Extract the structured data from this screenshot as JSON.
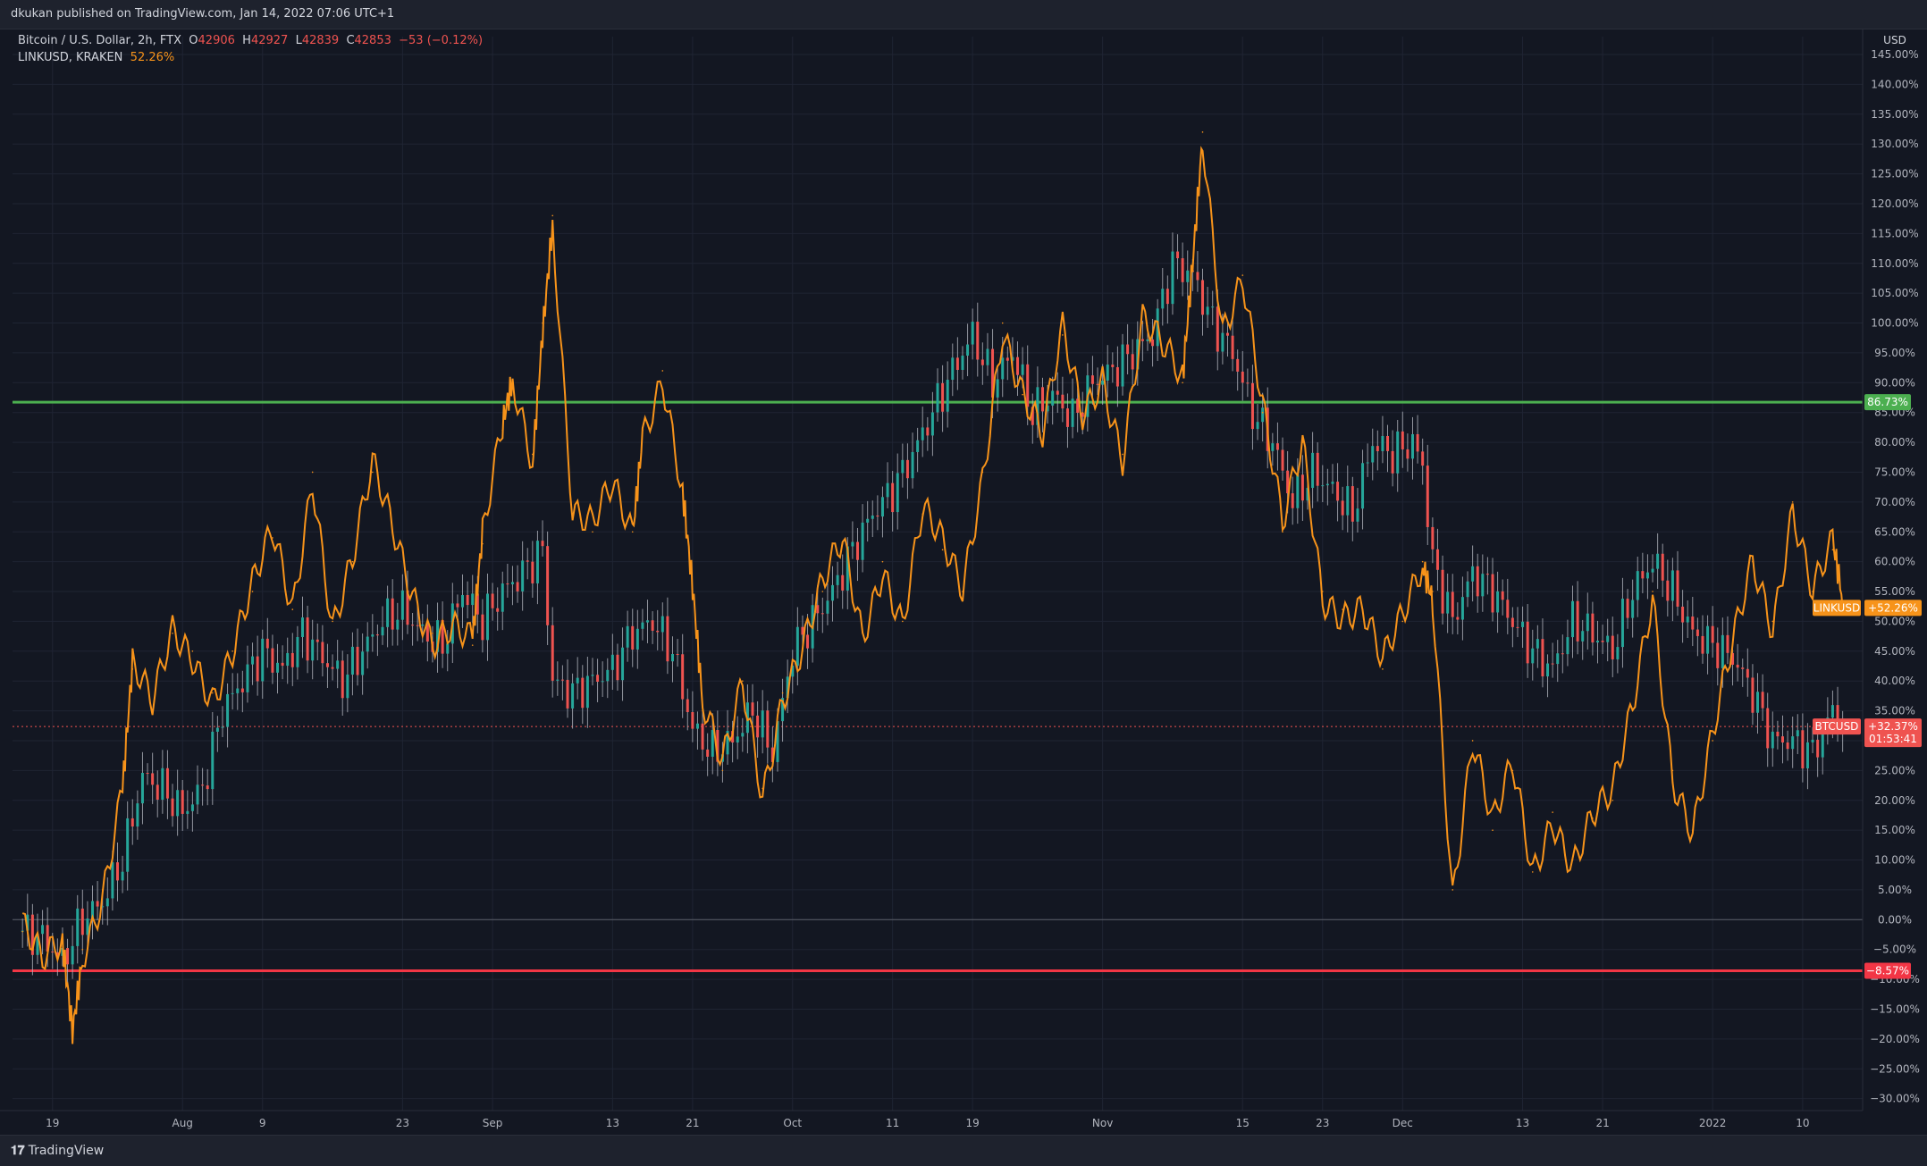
{
  "header": {
    "published": "dkukan published on TradingView.com, Jan 14, 2022 07:06 UTC+1"
  },
  "legend": {
    "main_symbol": "Bitcoin / U.S. Dollar, 2h, FTX",
    "ohlc": {
      "o_label": "O",
      "o": "42906",
      "h_label": "H",
      "h": "42927",
      "l_label": "L",
      "l": "42839",
      "c_label": "C",
      "c": "42853",
      "change": "−53 (−0.12%)"
    },
    "compare_symbol": "LINKUSD, KRAKEN",
    "compare_value": "52.26%"
  },
  "footer": {
    "brand": "TradingView"
  },
  "colors": {
    "background": "#131722",
    "grid": "#1f2433",
    "btc_up": "#26a69a",
    "btc_down": "#ef5350",
    "btc_wick": "#b2b5be",
    "link": "#f7931a",
    "support_line": "#f23645",
    "resistance_line": "#4caf50"
  },
  "chart_data": {
    "type": "line",
    "price_axis_unit": "USD",
    "y_ticks": [
      "145.00%",
      "140.00%",
      "135.00%",
      "130.00%",
      "125.00%",
      "120.00%",
      "115.00%",
      "110.00%",
      "105.00%",
      "100.00%",
      "95.00%",
      "90.00%",
      "85.00%",
      "80.00%",
      "75.00%",
      "70.00%",
      "65.00%",
      "60.00%",
      "55.00%",
      "50.00%",
      "45.00%",
      "40.00%",
      "35.00%",
      "30.00%",
      "25.00%",
      "20.00%",
      "15.00%",
      "10.00%",
      "5.00%",
      "0.00%",
      "−5.00%",
      "−10.00%",
      "−15.00%",
      "−20.00%",
      "−25.00%",
      "−30.00%"
    ],
    "ylim": [
      -32,
      148
    ],
    "x_ticks": [
      {
        "label": "19",
        "date": "2021-07-19"
      },
      {
        "label": "Aug",
        "date": "2021-08-01"
      },
      {
        "label": "9",
        "date": "2021-08-09"
      },
      {
        "label": "23",
        "date": "2021-08-23"
      },
      {
        "label": "Sep",
        "date": "2021-09-01"
      },
      {
        "label": "13",
        "date": "2021-09-13"
      },
      {
        "label": "21",
        "date": "2021-09-21"
      },
      {
        "label": "Oct",
        "date": "2021-10-01"
      },
      {
        "label": "11",
        "date": "2021-10-11"
      },
      {
        "label": "19",
        "date": "2021-10-19"
      },
      {
        "label": "Nov",
        "date": "2021-11-01"
      },
      {
        "label": "15",
        "date": "2021-11-15"
      },
      {
        "label": "23",
        "date": "2021-11-23"
      },
      {
        "label": "Dec",
        "date": "2021-12-01"
      },
      {
        "label": "13",
        "date": "2021-12-13"
      },
      {
        "label": "21",
        "date": "2021-12-21"
      },
      {
        "label": "2022",
        "date": "2022-01-01"
      },
      {
        "label": "10",
        "date": "2022-01-10"
      }
    ],
    "series": [
      {
        "name": "LINKUSD",
        "style": "line",
        "x": [
          "2021-07-16",
          "2021-07-18",
          "2021-07-20",
          "2021-07-21",
          "2021-07-22",
          "2021-07-24",
          "2021-07-26",
          "2021-07-27",
          "2021-07-29",
          "2021-07-31",
          "2021-08-02",
          "2021-08-04",
          "2021-08-06",
          "2021-08-08",
          "2021-08-10",
          "2021-08-12",
          "2021-08-14",
          "2021-08-16",
          "2021-08-18",
          "2021-08-20",
          "2021-08-22",
          "2021-08-24",
          "2021-08-26",
          "2021-08-28",
          "2021-08-30",
          "2021-08-31",
          "2021-09-02",
          "2021-09-03",
          "2021-09-05",
          "2021-09-06",
          "2021-09-07",
          "2021-09-09",
          "2021-09-11",
          "2021-09-13",
          "2021-09-15",
          "2021-09-16",
          "2021-09-18",
          "2021-09-20",
          "2021-09-21",
          "2021-09-22",
          "2021-09-24",
          "2021-09-26",
          "2021-09-28",
          "2021-09-30",
          "2021-10-02",
          "2021-10-04",
          "2021-10-06",
          "2021-10-08",
          "2021-10-10",
          "2021-10-12",
          "2021-10-14",
          "2021-10-16",
          "2021-10-18",
          "2021-10-20",
          "2021-10-22",
          "2021-10-24",
          "2021-10-26",
          "2021-10-28",
          "2021-10-30",
          "2021-11-01",
          "2021-11-03",
          "2021-11-05",
          "2021-11-07",
          "2021-11-09",
          "2021-11-10",
          "2021-11-11",
          "2021-11-13",
          "2021-11-15",
          "2021-11-17",
          "2021-11-19",
          "2021-11-21",
          "2021-11-23",
          "2021-11-25",
          "2021-11-27",
          "2021-11-29",
          "2021-12-01",
          "2021-12-03",
          "2021-12-04",
          "2021-12-06",
          "2021-12-08",
          "2021-12-10",
          "2021-12-12",
          "2021-12-14",
          "2021-12-16",
          "2021-12-18",
          "2021-12-20",
          "2021-12-22",
          "2021-12-24",
          "2021-12-26",
          "2021-12-28",
          "2021-12-30",
          "2022-01-01",
          "2022-01-03",
          "2022-01-05",
          "2022-01-07",
          "2022-01-09",
          "2022-01-11",
          "2022-01-13",
          "2022-01-14"
        ],
        "y": [
          -2,
          -8,
          -4,
          -18,
          -5,
          5,
          22,
          42,
          35,
          48,
          45,
          38,
          45,
          55,
          64,
          52,
          75,
          50,
          60,
          75,
          65,
          55,
          48,
          50,
          46,
          63,
          82,
          90,
          78,
          100,
          118,
          68,
          65,
          72,
          65,
          82,
          92,
          72,
          55,
          35,
          25,
          40,
          22,
          38,
          45,
          55,
          63,
          48,
          60,
          50,
          68,
          62,
          55,
          75,
          100,
          88,
          80,
          98,
          85,
          92,
          78,
          100,
          95,
          90,
          110,
          132,
          100,
          108,
          85,
          65,
          80,
          55,
          52,
          52,
          42,
          50,
          60,
          55,
          5,
          30,
          15,
          25,
          8,
          18,
          10,
          17,
          20,
          35,
          55,
          25,
          15,
          30,
          45,
          60,
          50,
          70,
          55,
          62,
          52
        ]
      },
      {
        "name": "BTCUSD",
        "style": "candles",
        "x": [
          "2021-07-16",
          "2021-07-18",
          "2021-07-20",
          "2021-07-22",
          "2021-07-24",
          "2021-07-26",
          "2021-07-28",
          "2021-07-30",
          "2021-08-01",
          "2021-08-03",
          "2021-08-05",
          "2021-08-07",
          "2021-08-09",
          "2021-08-11",
          "2021-08-13",
          "2021-08-15",
          "2021-08-17",
          "2021-08-19",
          "2021-08-21",
          "2021-08-23",
          "2021-08-25",
          "2021-08-27",
          "2021-08-29",
          "2021-08-31",
          "2021-09-02",
          "2021-09-04",
          "2021-09-06",
          "2021-09-07",
          "2021-09-09",
          "2021-09-11",
          "2021-09-13",
          "2021-09-15",
          "2021-09-17",
          "2021-09-19",
          "2021-09-21",
          "2021-09-23",
          "2021-09-25",
          "2021-09-27",
          "2021-09-29",
          "2021-10-01",
          "2021-10-03",
          "2021-10-05",
          "2021-10-07",
          "2021-10-09",
          "2021-10-11",
          "2021-10-13",
          "2021-10-15",
          "2021-10-17",
          "2021-10-19",
          "2021-10-21",
          "2021-10-23",
          "2021-10-25",
          "2021-10-27",
          "2021-10-29",
          "2021-10-31",
          "2021-11-02",
          "2021-11-04",
          "2021-11-06",
          "2021-11-08",
          "2021-11-10",
          "2021-11-12",
          "2021-11-14",
          "2021-11-16",
          "2021-11-18",
          "2021-11-20",
          "2021-11-22",
          "2021-11-24",
          "2021-11-26",
          "2021-11-28",
          "2021-11-30",
          "2021-12-02",
          "2021-12-03",
          "2021-12-04",
          "2021-12-06",
          "2021-12-08",
          "2021-12-10",
          "2021-12-12",
          "2021-12-14",
          "2021-12-16",
          "2021-12-18",
          "2021-12-20",
          "2021-12-22",
          "2021-12-24",
          "2021-12-26",
          "2021-12-28",
          "2021-12-30",
          "2022-01-01",
          "2022-01-03",
          "2022-01-05",
          "2022-01-07",
          "2022-01-09",
          "2022-01-11",
          "2022-01-13",
          "2022-01-14"
        ],
        "y": [
          -2,
          -3,
          -7,
          0,
          3,
          10,
          24,
          22,
          18,
          22,
          35,
          40,
          45,
          42,
          48,
          44,
          40,
          45,
          50,
          52,
          48,
          46,
          55,
          50,
          55,
          58,
          62,
          40,
          38,
          40,
          42,
          48,
          50,
          45,
          32,
          28,
          30,
          35,
          28,
          45,
          50,
          55,
          62,
          68,
          72,
          78,
          85,
          92,
          98,
          90,
          95,
          85,
          88,
          84,
          90,
          92,
          95,
          98,
          110,
          108,
          100,
          95,
          85,
          80,
          70,
          75,
          72,
          68,
          80,
          78,
          80,
          76,
          60,
          50,
          58,
          55,
          50,
          45,
          42,
          50,
          48,
          45,
          55,
          60,
          55,
          48,
          46,
          44,
          38,
          30,
          30,
          28,
          35,
          32
        ]
      }
    ],
    "horizontal_lines": [
      {
        "label": "86.73%",
        "value": 86.73,
        "color": "#4caf50"
      },
      {
        "label": "−8.57%",
        "value": -8.57,
        "color": "#f23645"
      }
    ],
    "price_labels": [
      {
        "series_tag": "LINKUSD",
        "value_text": "+52.26%",
        "value": 52.26,
        "color": "#f7931a"
      },
      {
        "series_tag": "BTCUSD",
        "value_text": "+32.37%",
        "countdown": "01:53:41",
        "value": 32.37,
        "color": "#ef5350"
      }
    ],
    "zero_line": 0,
    "grid": true
  }
}
